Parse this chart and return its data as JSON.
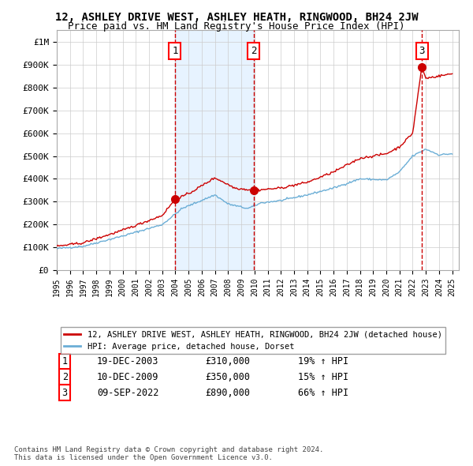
{
  "title": "12, ASHLEY DRIVE WEST, ASHLEY HEATH, RINGWOOD, BH24 2JW",
  "subtitle": "Price paid vs. HM Land Registry's House Price Index (HPI)",
  "hpi_label": "HPI: Average price, detached house, Dorset",
  "property_label": "12, ASHLEY DRIVE WEST, ASHLEY HEATH, RINGWOOD, BH24 2JW (detached house)",
  "copyright": "Contains HM Land Registry data © Crown copyright and database right 2024.\nThis data is licensed under the Open Government Licence v3.0.",
  "transactions": [
    {
      "num": 1,
      "date": "19-DEC-2003",
      "price": 310000,
      "hpi_change": "19% ↑ HPI",
      "year": 2003.97
    },
    {
      "num": 2,
      "date": "10-DEC-2009",
      "price": 350000,
      "hpi_change": "15% ↑ HPI",
      "year": 2009.95
    },
    {
      "num": 3,
      "date": "09-SEP-2022",
      "price": 890000,
      "hpi_change": "66% ↑ HPI",
      "year": 2022.69
    }
  ],
  "hpi_color": "#6baed6",
  "price_color": "#cc0000",
  "bg_shaded_color": "#ddeeff",
  "dashed_line_color": "#cc0000",
  "ylim": [
    0,
    1050000
  ],
  "xlim_start": 1995,
  "xlim_end": 2025.5
}
